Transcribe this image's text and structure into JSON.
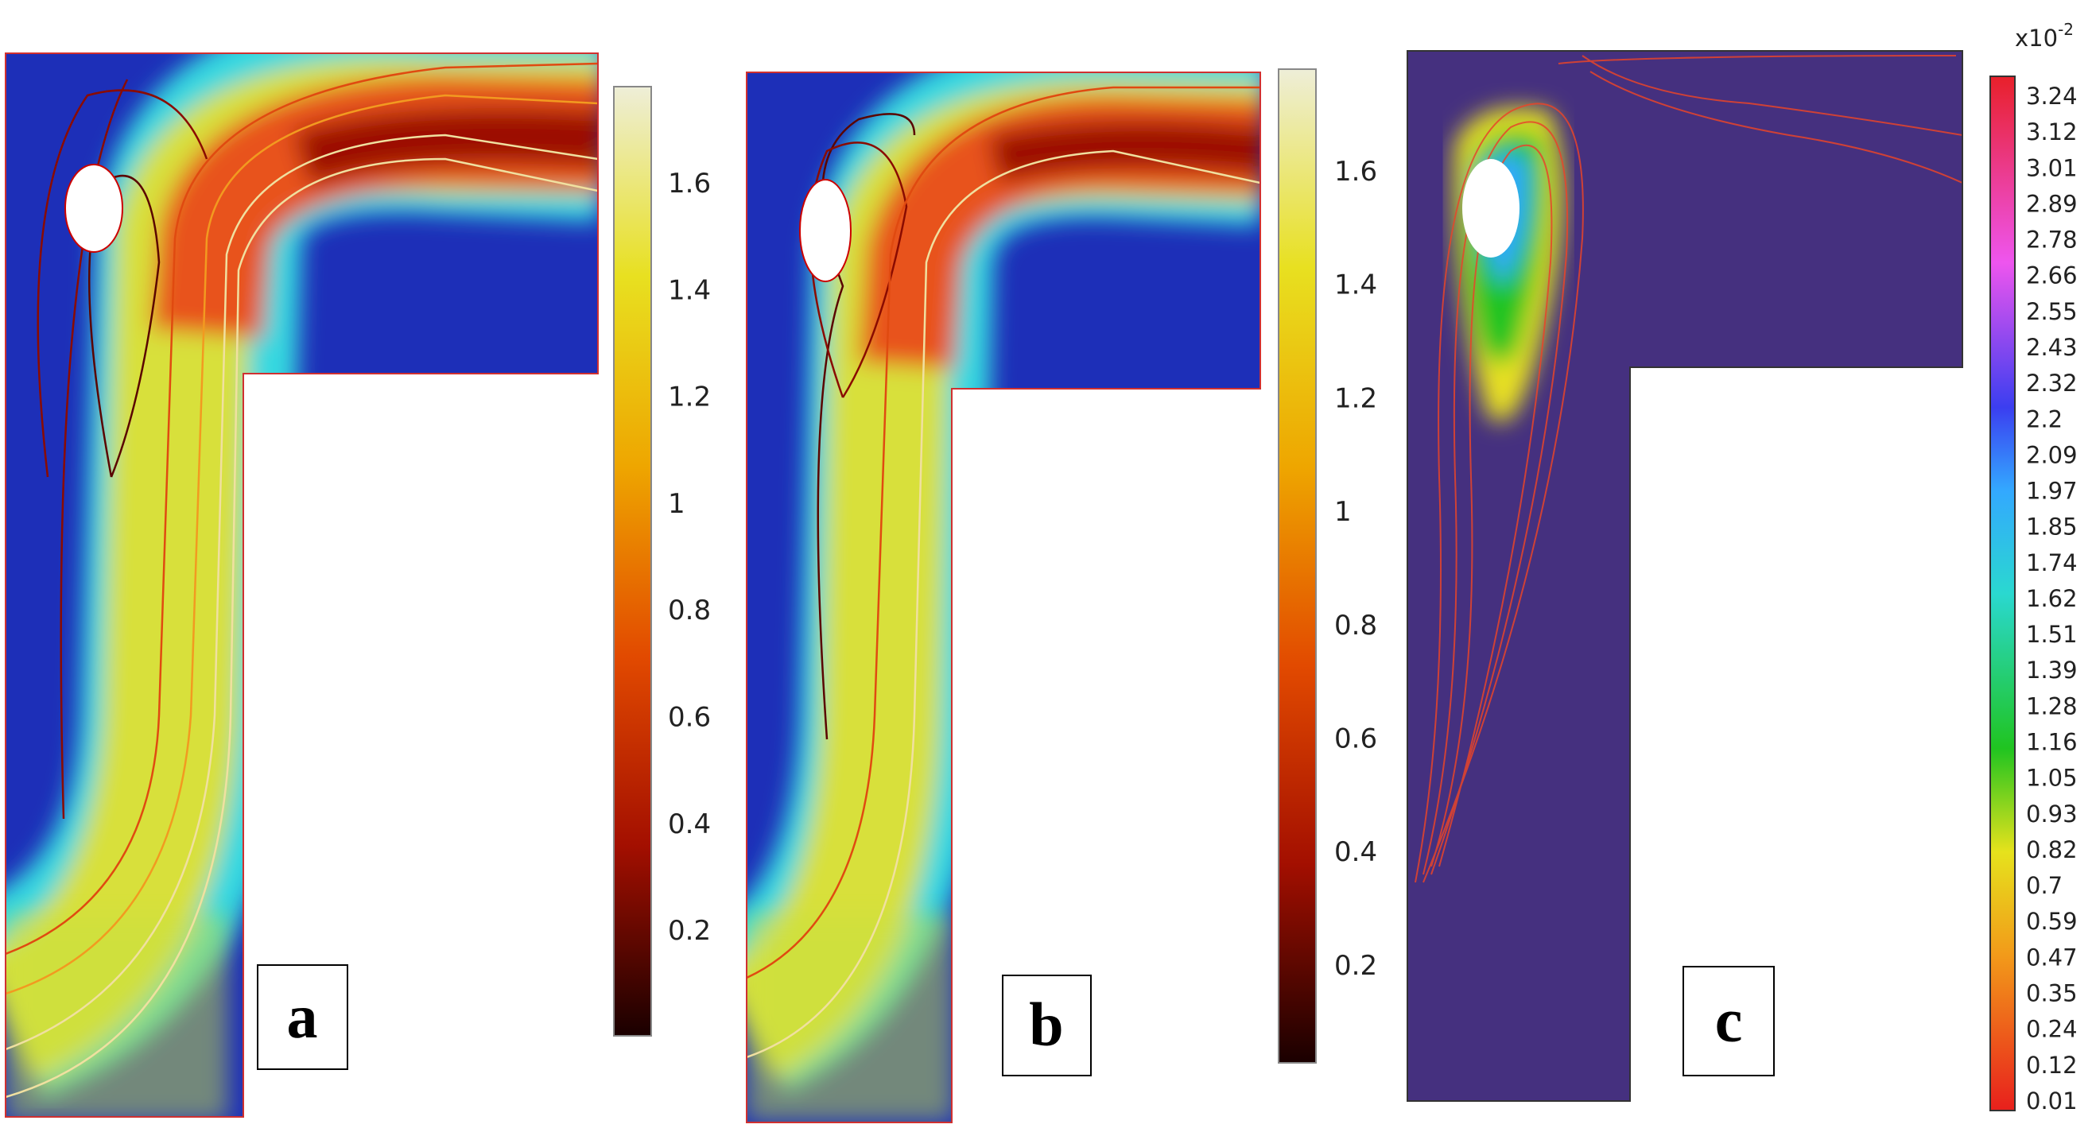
{
  "panels": [
    {
      "label": "a",
      "colorbar": {
        "ticks": [
          "1.6",
          "1.4",
          "1.2",
          "1",
          "0.8",
          "0.6",
          "0.4",
          "0.2"
        ],
        "colormap": "black-red-orange-yellow-white"
      }
    },
    {
      "label": "b",
      "colorbar": {
        "ticks": [
          "1.6",
          "1.4",
          "1.2",
          "1",
          "0.8",
          "0.6",
          "0.4",
          "0.2"
        ],
        "colormap": "black-red-orange-yellow-white"
      }
    },
    {
      "label": "c",
      "colorbar": {
        "multiplier": "x10",
        "exponent": "-2",
        "ticks": [
          "3.24",
          "3.12",
          "3.01",
          "2.89",
          "2.78",
          "2.66",
          "2.55",
          "2.43",
          "2.32",
          "2.2",
          "2.09",
          "1.97",
          "1.85",
          "1.74",
          "1.62",
          "1.51",
          "1.39",
          "1.28",
          "1.16",
          "1.05",
          "0.93",
          "0.82",
          "0.7",
          "0.59",
          "0.47",
          "0.35",
          "0.24",
          "0.12",
          "0.01"
        ],
        "colormap": "red-yellow-green-cyan-blue-magenta-red"
      }
    }
  ],
  "colors": {
    "field_low": "#1d2fb8",
    "field_background_c": "#45307f",
    "contour": "#e8452a",
    "obstacle": "#ffffff"
  }
}
